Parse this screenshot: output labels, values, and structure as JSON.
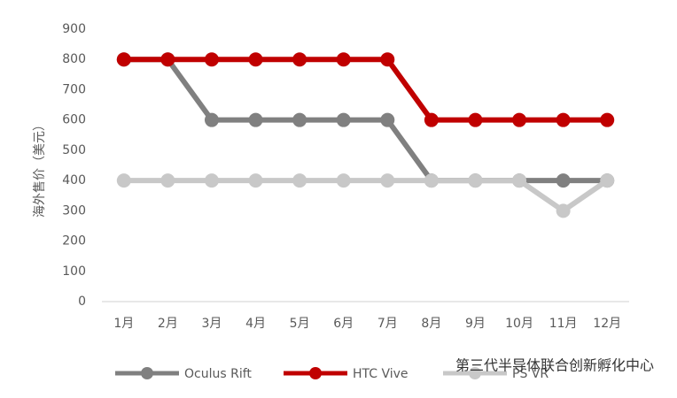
{
  "chart_data": {
    "type": "line",
    "y_label": "海外售价（美元）",
    "categories": [
      "1月",
      "2月",
      "3月",
      "4月",
      "5月",
      "6月",
      "7月",
      "8月",
      "9月",
      "10月",
      "11月",
      "12月"
    ],
    "series": [
      {
        "name": "Oculus Rift",
        "color": "#808080",
        "values": [
          800,
          800,
          600,
          600,
          600,
          600,
          600,
          400,
          400,
          400,
          400,
          400
        ]
      },
      {
        "name": "HTC Vive",
        "color": "#c00000",
        "values": [
          800,
          800,
          800,
          800,
          800,
          800,
          800,
          600,
          600,
          600,
          600,
          600
        ]
      },
      {
        "name": "PS VR",
        "color": "#c8c8c8",
        "values": [
          400,
          400,
          400,
          400,
          400,
          400,
          400,
          400,
          400,
          400,
          300,
          400
        ]
      }
    ],
    "ylim": [
      0,
      900
    ],
    "yticks": [
      0,
      100,
      200,
      300,
      400,
      500,
      600,
      700,
      800,
      900
    ],
    "grid": false
  },
  "watermark": "第三代半导体联合创新孵化中心"
}
